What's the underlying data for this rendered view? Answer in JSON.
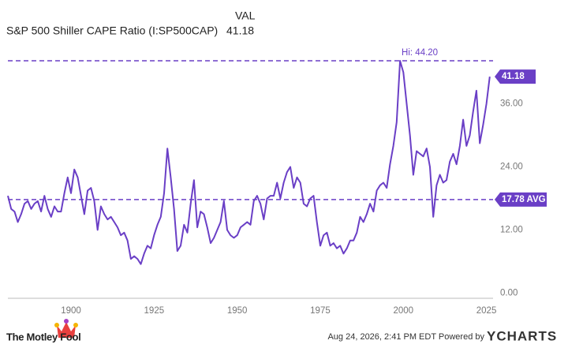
{
  "chart_data": {
    "type": "line",
    "legend_header": "VAL",
    "last_value": {
      "value": 41.18,
      "label": "41.18"
    },
    "x": [
      1881,
      1882,
      1883,
      1884,
      1885,
      1886,
      1887,
      1888,
      1889,
      1890,
      1891,
      1892,
      1893,
      1894,
      1895,
      1896,
      1897,
      1898,
      1899,
      1900,
      1901,
      1902,
      1903,
      1904,
      1905,
      1906,
      1907,
      1908,
      1909,
      1910,
      1911,
      1912,
      1913,
      1914,
      1915,
      1916,
      1917,
      1918,
      1919,
      1920,
      1921,
      1922,
      1923,
      1924,
      1925,
      1926,
      1927,
      1928,
      1929,
      1930,
      1931,
      1932,
      1933,
      1934,
      1935,
      1936,
      1937,
      1938,
      1939,
      1940,
      1941,
      1942,
      1943,
      1944,
      1945,
      1946,
      1947,
      1948,
      1949,
      1950,
      1951,
      1952,
      1953,
      1954,
      1955,
      1956,
      1957,
      1958,
      1959,
      1960,
      1961,
      1962,
      1963,
      1964,
      1965,
      1966,
      1967,
      1968,
      1969,
      1970,
      1971,
      1972,
      1973,
      1974,
      1975,
      1976,
      1977,
      1978,
      1979,
      1980,
      1981,
      1982,
      1983,
      1984,
      1985,
      1986,
      1987,
      1988,
      1989,
      1990,
      1991,
      1992,
      1993,
      1994,
      1995,
      1996,
      1997,
      1998,
      1999,
      2000,
      2001,
      2002,
      2003,
      2004,
      2005,
      2006,
      2007,
      2008,
      2009,
      2010,
      2011,
      2012,
      2013,
      2014,
      2015,
      2016,
      2017,
      2018,
      2019,
      2020,
      2021,
      2022,
      2023,
      2024,
      2025,
      2026
    ],
    "series": [
      {
        "name": "S&P 500 Shiller CAPE Ratio (I:SP500CAP)",
        "color": "#6a3fc6",
        "values": [
          18.5,
          16,
          15.5,
          13.5,
          15,
          17,
          17.5,
          16,
          17,
          17.5,
          15.5,
          18.5,
          16,
          14.5,
          16.5,
          15.5,
          15.5,
          19,
          22,
          19,
          23.5,
          22,
          18.5,
          15,
          19.5,
          20,
          17.5,
          12,
          16.5,
          15,
          14,
          14.5,
          13.5,
          12.5,
          11,
          11.5,
          10,
          6.5,
          7,
          6.5,
          5.5,
          7.5,
          9,
          8.5,
          11,
          13,
          14.5,
          19,
          27.5,
          22,
          16,
          8,
          9,
          13,
          11.5,
          17,
          21.5,
          12.5,
          15.5,
          15,
          12.5,
          9.5,
          10.5,
          12,
          13.5,
          17.5,
          12,
          11,
          10.5,
          11,
          12.5,
          13,
          13.5,
          13,
          17.5,
          18.5,
          17,
          14,
          18,
          18.5,
          18.5,
          21,
          18,
          21,
          23,
          24,
          20,
          22,
          21,
          17,
          16.5,
          18,
          18.5,
          13.5,
          9,
          11,
          11.5,
          9,
          9.5,
          8.5,
          9,
          7.5,
          8.5,
          10,
          10,
          11.5,
          14.5,
          13.5,
          15,
          17,
          15.5,
          19.5,
          20.5,
          21,
          20,
          24.5,
          28,
          32.5,
          44.2,
          42,
          36,
          30,
          22.5,
          27,
          26.5,
          26,
          27.5,
          24,
          14.5,
          20.5,
          22.5,
          21,
          21.5,
          25,
          26.5,
          24.5,
          28,
          33,
          28,
          30,
          34.5,
          38.5,
          28.5,
          32,
          36,
          41.18
        ]
      }
    ],
    "annotations": [
      {
        "label": "Hi: 44.20",
        "value": 44.2
      },
      {
        "label": "17.78 AVG",
        "value": 17.78
      }
    ],
    "xlim": [
      1881,
      2027
    ],
    "xticks": [
      1900,
      1925,
      1950,
      1975,
      2000,
      2025
    ],
    "ylim": [
      -1,
      46
    ],
    "yticks": [
      {
        "value": 0,
        "label": "0.00"
      },
      {
        "value": 12,
        "label": "12.00"
      },
      {
        "value": 24,
        "label": "24.00"
      },
      {
        "value": 36,
        "label": "36.00"
      }
    ],
    "grid": false,
    "footer": {
      "timestamp": "Aug 24, 2026, 2:41 PM EDT Powered by",
      "brand": "YCHARTS",
      "publisher": "The Motley Fool"
    }
  }
}
